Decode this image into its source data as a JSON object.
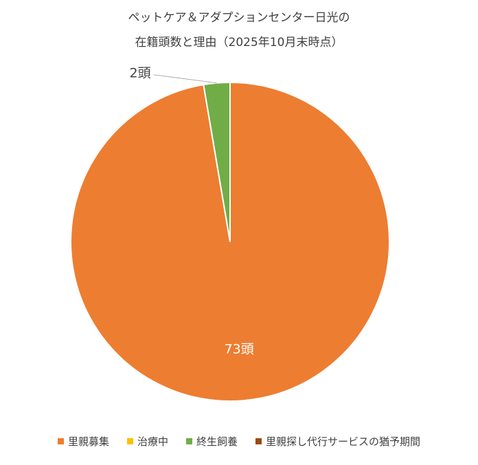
{
  "chart_data": {
    "type": "pie",
    "title_lines": [
      "ペットケア＆アダプションセンター日光の",
      "在籍頭数と理由（2025年10月末時点）"
    ],
    "categories": [
      "里親募集",
      "治療中",
      "終生飼養",
      "里親探し代行サービスの猶予期間"
    ],
    "values": [
      73,
      0,
      2,
      0
    ],
    "data_labels": [
      "73頭",
      "",
      "2頭",
      ""
    ],
    "colors": [
      "#ED7D31",
      "#FFC000",
      "#70AD47",
      "#9E480E"
    ],
    "legend_position": "bottom"
  }
}
